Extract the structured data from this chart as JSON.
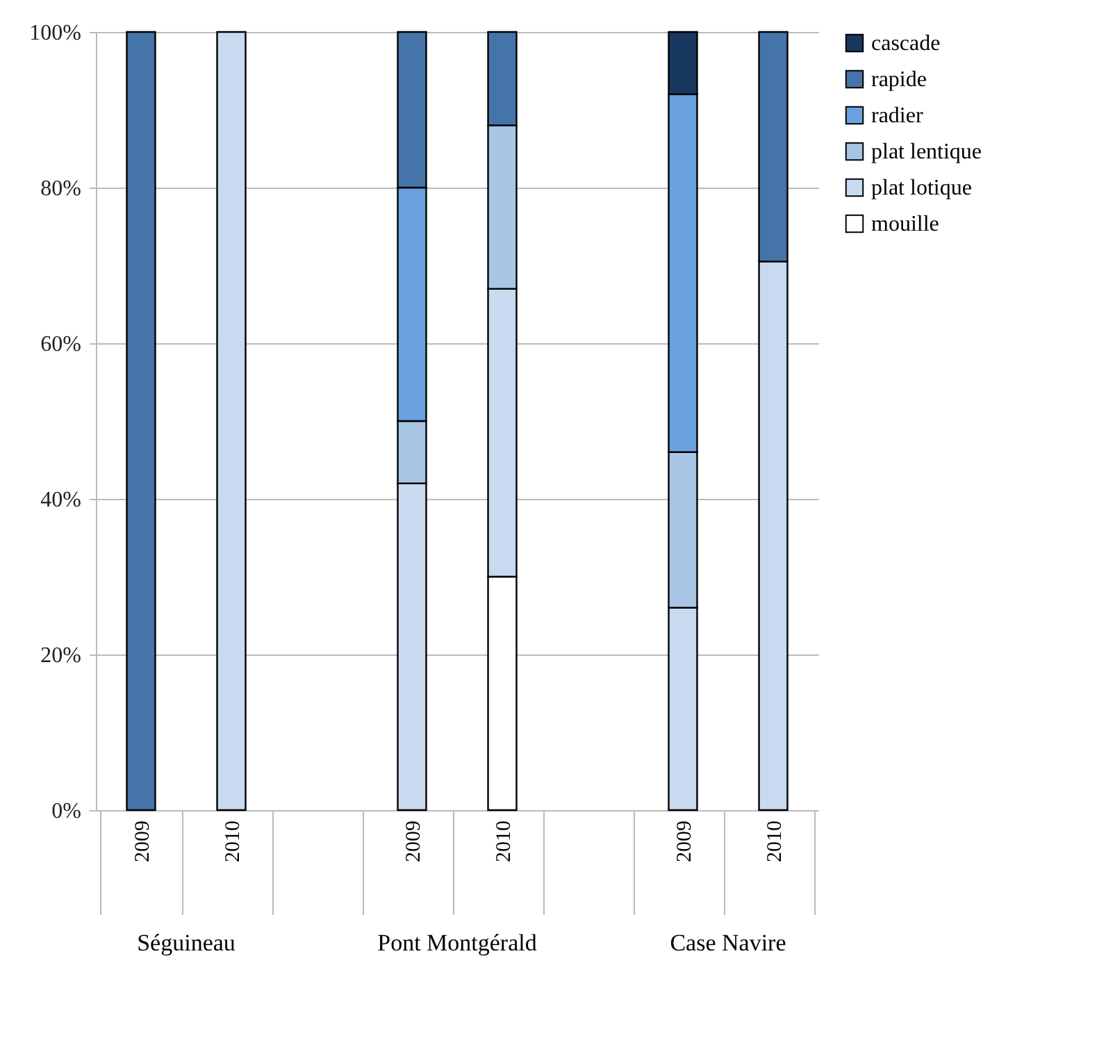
{
  "chart_data": {
    "type": "bar",
    "stacked": true,
    "categories": [
      "2009",
      "2010",
      null,
      "2009",
      "2010",
      null,
      "2009",
      "2010"
    ],
    "series": [
      {
        "name": "mouille",
        "color": "#ffffff",
        "values": [
          null,
          null,
          null,
          null,
          30,
          null,
          null,
          null
        ]
      },
      {
        "name": "plat lotique",
        "color": "#c9daf0",
        "values": [
          null,
          100,
          null,
          42,
          37,
          null,
          26,
          70.5
        ]
      },
      {
        "name": "plat lentique",
        "color": "#a8c5e5",
        "values": [
          null,
          null,
          null,
          8,
          21,
          null,
          20,
          null
        ]
      },
      {
        "name": "radier",
        "color": "#6aa2e0",
        "values": [
          null,
          null,
          null,
          30,
          null,
          null,
          46,
          null
        ]
      },
      {
        "name": "rapide",
        "color": "#4575a8",
        "values": [
          100,
          null,
          null,
          20,
          12,
          null,
          null,
          29.5
        ]
      },
      {
        "name": "cascade",
        "color": "#17375e",
        "values": [
          null,
          null,
          null,
          null,
          null,
          null,
          8,
          null
        ]
      }
    ],
    "ylim": [
      0,
      100
    ],
    "yticks": [
      {
        "value": 0,
        "label": "0%"
      },
      {
        "value": 20,
        "label": "20%"
      },
      {
        "value": 40,
        "label": "40%"
      },
      {
        "value": 60,
        "label": "60%"
      },
      {
        "value": 80,
        "label": "80%"
      },
      {
        "value": 100,
        "label": "100%"
      }
    ],
    "grid": "y",
    "legend": "right",
    "annotations": [
      "Séguineau",
      "Pont Montgérald",
      "Case Navire"
    ]
  }
}
